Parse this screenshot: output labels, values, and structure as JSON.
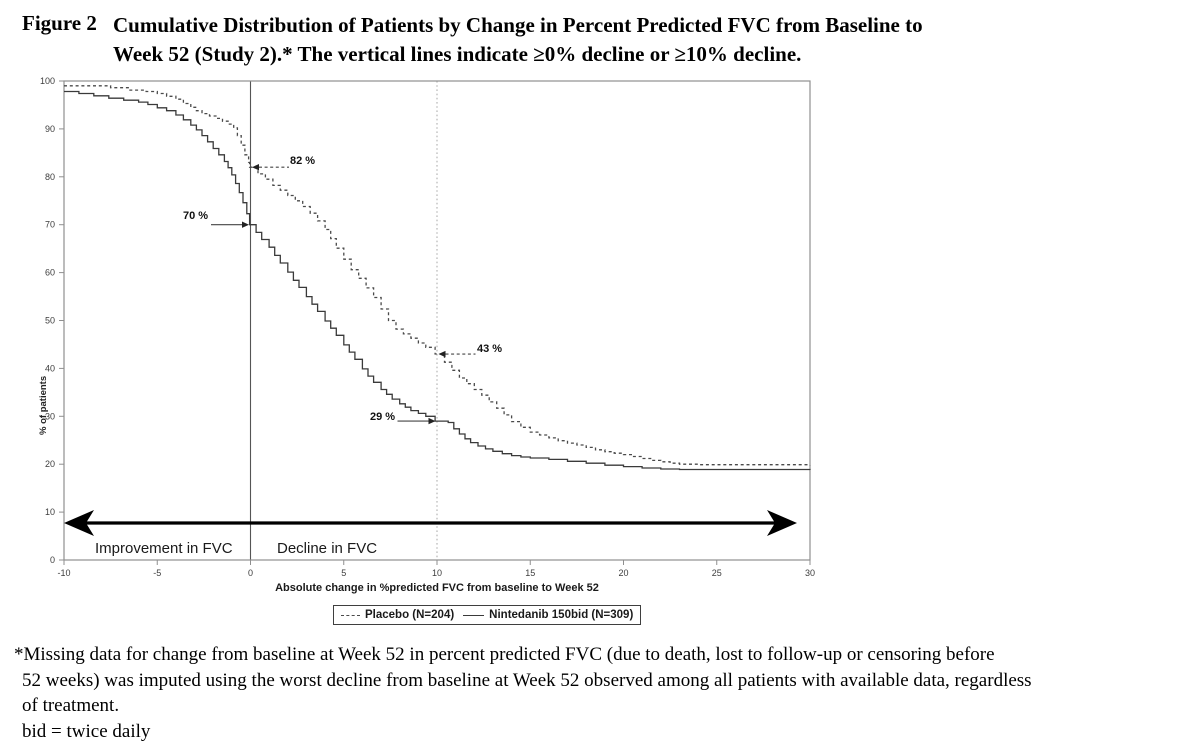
{
  "figure": {
    "label": "Figure 2",
    "title_line1": "Cumulative Distribution of Patients by Change in Percent Predicted FVC from Baseline to",
    "title_line2": "Week 52 (Study 2).* The vertical lines indicate ≥0% decline or ≥10% decline."
  },
  "chart_data": {
    "type": "line",
    "subtype": "step-cumulative-distribution",
    "xlabel": "Absolute change in %predicted FVC from baseline to Week 52",
    "ylabel": "% of patients",
    "xlim": [
      -10,
      30
    ],
    "ylim": [
      0,
      100
    ],
    "x_ticks": [
      -10,
      -5,
      0,
      5,
      10,
      15,
      20,
      25,
      30
    ],
    "y_ticks": [
      0,
      10,
      20,
      30,
      40,
      50,
      60,
      70,
      80,
      90,
      100
    ],
    "grid": false,
    "legend_position": "bottom",
    "reference_lines": [
      {
        "x": 0,
        "style": "solid",
        "meaning": "≥0% decline"
      },
      {
        "x": 10,
        "style": "dotted",
        "meaning": "≥10% decline"
      }
    ],
    "region_labels": [
      {
        "text": "Improvement in FVC",
        "side": "left of 0"
      },
      {
        "text": "Decline in FVC",
        "side": "right of 0"
      }
    ],
    "annotations": [
      {
        "label": "82 %",
        "x": 0,
        "y": 82,
        "series": "Placebo (N=204)",
        "arrow": "left",
        "dash": true
      },
      {
        "label": "70 %",
        "x": 0,
        "y": 70,
        "series": "Nintedanib 150bid (N=309)",
        "arrow": "right",
        "dash": false
      },
      {
        "label": "43 %",
        "x": 10,
        "y": 43,
        "series": "Placebo (N=204)",
        "arrow": "left",
        "dash": true
      },
      {
        "label": "29 %",
        "x": 10,
        "y": 29,
        "series": "Nintedanib 150bid (N=309)",
        "arrow": "right",
        "dash": false
      }
    ],
    "series": [
      {
        "name": "Placebo (N=204)",
        "style": "dashed",
        "color": "#4a4a4a",
        "points": [
          [
            -10,
            99
          ],
          [
            -8.2,
            99
          ],
          [
            -7.5,
            98.6
          ],
          [
            -6.5,
            98.1
          ],
          [
            -5.6,
            97.8
          ],
          [
            -5,
            97.4
          ],
          [
            -4.5,
            96.8
          ],
          [
            -4,
            96.2
          ],
          [
            -3.6,
            95.3
          ],
          [
            -3.2,
            94.5
          ],
          [
            -2.9,
            93.8
          ],
          [
            -2.6,
            93.2
          ],
          [
            -2.2,
            92.7
          ],
          [
            -1.8,
            92.2
          ],
          [
            -1.5,
            91.6
          ],
          [
            -1.2,
            91
          ],
          [
            -0.9,
            90.2
          ],
          [
            -0.7,
            88.6
          ],
          [
            -0.5,
            86.6
          ],
          [
            -0.3,
            84.6
          ],
          [
            -0.1,
            83
          ],
          [
            -0.05,
            82
          ],
          [
            0.4,
            80.6
          ],
          [
            0.8,
            79.5
          ],
          [
            1.2,
            78.2
          ],
          [
            1.6,
            77.2
          ],
          [
            2,
            76.1
          ],
          [
            2.4,
            75
          ],
          [
            2.8,
            73.8
          ],
          [
            3.2,
            72.4
          ],
          [
            3.6,
            70.8
          ],
          [
            4,
            69
          ],
          [
            4.3,
            67.1
          ],
          [
            4.6,
            65.1
          ],
          [
            5,
            62.8
          ],
          [
            5.4,
            60.6
          ],
          [
            5.8,
            58.8
          ],
          [
            6.2,
            56.8
          ],
          [
            6.6,
            54.8
          ],
          [
            7,
            52.4
          ],
          [
            7.4,
            50
          ],
          [
            7.8,
            48.2
          ],
          [
            8.2,
            47.2
          ],
          [
            8.6,
            46.3
          ],
          [
            9,
            45.3
          ],
          [
            9.4,
            44.4
          ],
          [
            9.9,
            43
          ],
          [
            10.4,
            41.3
          ],
          [
            10.8,
            39.6
          ],
          [
            11.2,
            38
          ],
          [
            11.6,
            36.8
          ],
          [
            12,
            35.6
          ],
          [
            12.4,
            34.4
          ],
          [
            12.8,
            33
          ],
          [
            13.2,
            31.7
          ],
          [
            13.6,
            30.3
          ],
          [
            14,
            28.9
          ],
          [
            14.5,
            27.7
          ],
          [
            15,
            26.7
          ],
          [
            15.5,
            26.1
          ],
          [
            16,
            25.5
          ],
          [
            16.5,
            24.9
          ],
          [
            17,
            24.4
          ],
          [
            17.5,
            24
          ],
          [
            18,
            23.5
          ],
          [
            18.5,
            23
          ],
          [
            19,
            22.6
          ],
          [
            19.5,
            22.3
          ],
          [
            20,
            22
          ],
          [
            20.5,
            21.6
          ],
          [
            21,
            21.2
          ],
          [
            21.5,
            20.8
          ],
          [
            22,
            20.5
          ],
          [
            22.5,
            20.2
          ],
          [
            23,
            20
          ],
          [
            24,
            19.9
          ],
          [
            30,
            19.8
          ]
        ]
      },
      {
        "name": "Nintedanib 150bid (N=309)",
        "style": "solid",
        "color": "#3a3a3a",
        "points": [
          [
            -10,
            97.8
          ],
          [
            -9.2,
            97.4
          ],
          [
            -8.4,
            96.9
          ],
          [
            -7.6,
            96.4
          ],
          [
            -6.8,
            96
          ],
          [
            -6,
            95.6
          ],
          [
            -5.5,
            95.1
          ],
          [
            -5,
            94.4
          ],
          [
            -4.5,
            93.8
          ],
          [
            -4,
            92.9
          ],
          [
            -3.6,
            91.9
          ],
          [
            -3.2,
            90.8
          ],
          [
            -2.9,
            89.8
          ],
          [
            -2.6,
            88.6
          ],
          [
            -2.3,
            87.3
          ],
          [
            -2,
            85.9
          ],
          [
            -1.7,
            84.6
          ],
          [
            -1.4,
            83.2
          ],
          [
            -1.2,
            81.9
          ],
          [
            -1,
            80.4
          ],
          [
            -0.8,
            78.6
          ],
          [
            -0.6,
            76.7
          ],
          [
            -0.4,
            74.6
          ],
          [
            -0.2,
            72.3
          ],
          [
            -0.05,
            70
          ],
          [
            0.3,
            68.4
          ],
          [
            0.6,
            66.9
          ],
          [
            1,
            65.3
          ],
          [
            1.3,
            63.6
          ],
          [
            1.6,
            62
          ],
          [
            2,
            60.1
          ],
          [
            2.3,
            58.4
          ],
          [
            2.6,
            56.9
          ],
          [
            3,
            55
          ],
          [
            3.3,
            53.4
          ],
          [
            3.6,
            51.9
          ],
          [
            4,
            49.9
          ],
          [
            4.3,
            48.4
          ],
          [
            4.6,
            46.9
          ],
          [
            5,
            44.9
          ],
          [
            5.3,
            43.4
          ],
          [
            5.6,
            41.9
          ],
          [
            6,
            39.9
          ],
          [
            6.3,
            38.4
          ],
          [
            6.6,
            37.1
          ],
          [
            7,
            35.6
          ],
          [
            7.3,
            34.6
          ],
          [
            7.6,
            33.6
          ],
          [
            8,
            32.6
          ],
          [
            8.3,
            31.9
          ],
          [
            8.6,
            31.2
          ],
          [
            9,
            30.6
          ],
          [
            9.4,
            30
          ],
          [
            9.9,
            29
          ],
          [
            10.6,
            28.7
          ],
          [
            10.9,
            27.4
          ],
          [
            11.2,
            26.3
          ],
          [
            11.5,
            25.3
          ],
          [
            11.8,
            24.5
          ],
          [
            12.2,
            23.8
          ],
          [
            12.6,
            23.2
          ],
          [
            13,
            22.7
          ],
          [
            13.5,
            22.2
          ],
          [
            14,
            21.8
          ],
          [
            14.5,
            21.5
          ],
          [
            15,
            21.3
          ],
          [
            16,
            21
          ],
          [
            17,
            20.6
          ],
          [
            18,
            20.2
          ],
          [
            19,
            19.8
          ],
          [
            20,
            19.5
          ],
          [
            21,
            19.2
          ],
          [
            22,
            19
          ],
          [
            23,
            18.9
          ],
          [
            30,
            18.8
          ]
        ]
      }
    ]
  },
  "footnote": {
    "line1": "*Missing data for change from baseline at Week 52 in percent predicted FVC (due to death, lost to follow-up or censoring before",
    "line2": "52 weeks) was imputed using the worst decline from baseline at Week 52 observed among all patients with available data, regardless",
    "line3": "of treatment.",
    "line4": "bid = twice daily"
  }
}
